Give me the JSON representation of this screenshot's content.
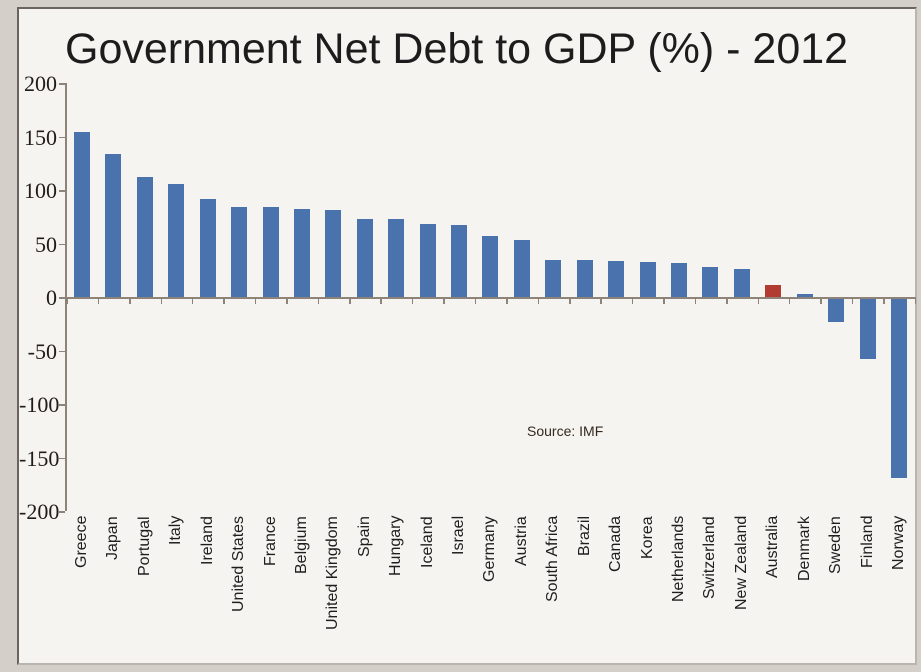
{
  "chart_data": {
    "type": "bar",
    "title": "Government Net Debt to GDP (%) - 2012",
    "source_note": "Source: IMF",
    "categories": [
      "Greece",
      "Japan",
      "Portugal",
      "Italy",
      "Ireland",
      "United States",
      "France",
      "Belgium",
      "United Kingdom",
      "Spain",
      "Hungary",
      "Iceland",
      "Israel",
      "Germany",
      "Austria",
      "South Africa",
      "Brazil",
      "Canada",
      "Korea",
      "Netherlands",
      "Switzerland",
      "New Zealand",
      "Australia",
      "Denmark",
      "Sweden",
      "Finland",
      "Norway"
    ],
    "values": [
      154,
      134,
      112,
      106,
      92,
      84,
      84,
      82,
      81,
      73,
      73,
      68,
      67,
      57,
      53,
      35,
      35,
      34,
      33,
      32,
      28,
      26,
      11,
      3,
      -22,
      -57,
      -168
    ],
    "highlight_category": "Australia",
    "bar_color": "#4a73ad",
    "highlight_color": "#b23b32",
    "xlabel": "",
    "ylabel": "",
    "ylim": [
      -200,
      200
    ],
    "yticks": [
      200,
      150,
      100,
      50,
      0,
      -50,
      -100,
      -150,
      -200
    ],
    "ytick_labels": [
      "200",
      "150",
      "100",
      "50",
      "0",
      "-50",
      "-100",
      "-150",
      "-200"
    ],
    "grid": false,
    "legend": false,
    "axis_color": "#8d8379"
  }
}
